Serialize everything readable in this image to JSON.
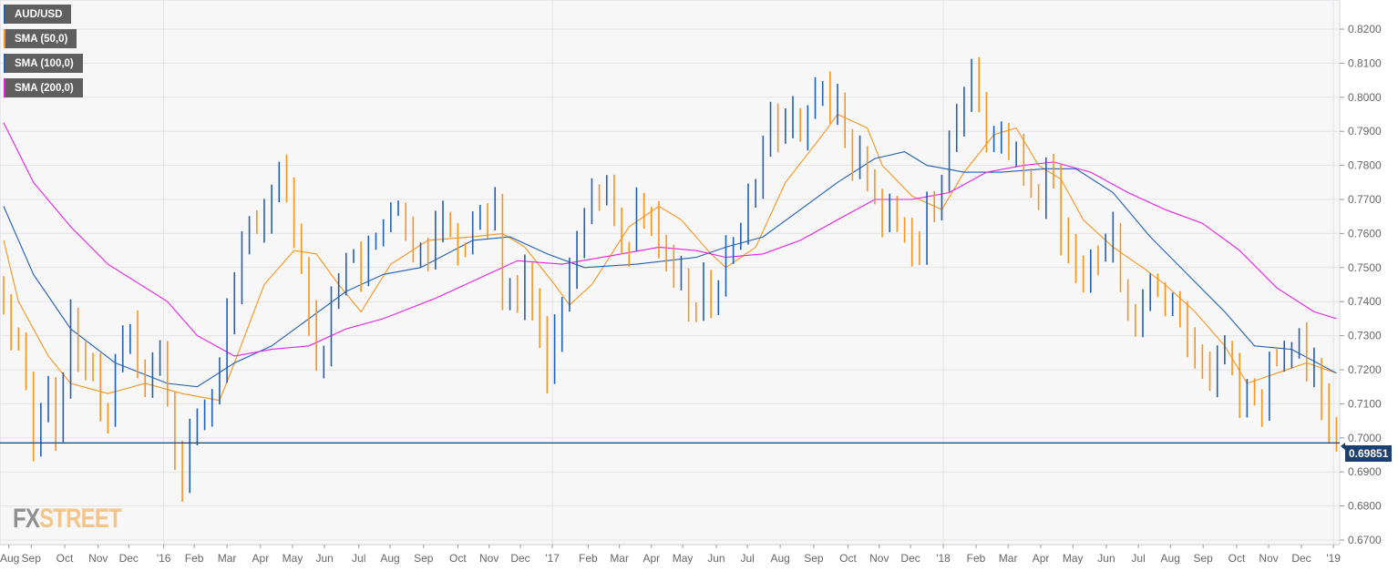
{
  "chart_data": {
    "type": "candlestick-weekly",
    "symbol": "AUD/USD",
    "ylim": [
      0.67,
      0.82
    ],
    "yticks": [
      "0.8200",
      "0.8100",
      "0.8000",
      "0.7900",
      "0.7800",
      "0.7700",
      "0.7600",
      "0.7500",
      "0.7400",
      "0.7300",
      "0.7200",
      "0.7100",
      "0.7000",
      "0.6900",
      "0.6800",
      "0.6700"
    ],
    "ytick_values": [
      0.82,
      0.81,
      0.8,
      0.79,
      0.78,
      0.77,
      0.76,
      0.75,
      0.74,
      0.73,
      0.72,
      0.71,
      0.7,
      0.69,
      0.68,
      0.67
    ],
    "weeks": 180,
    "xticks": [
      {
        "label": "Aug",
        "week": 0.7
      },
      {
        "label": "Sep",
        "week": 3.7
      },
      {
        "label": "Oct",
        "week": 8.2
      },
      {
        "label": "Nov",
        "week": 12.7
      },
      {
        "label": "Dec",
        "week": 16.8
      },
      {
        "label": "'16",
        "week": 21.5
      },
      {
        "label": "Feb",
        "week": 25.6
      },
      {
        "label": "Mar",
        "week": 30
      },
      {
        "label": "Apr",
        "week": 34.5
      },
      {
        "label": "May",
        "week": 38.8
      },
      {
        "label": "Jun",
        "week": 43.1
      },
      {
        "label": "Jul",
        "week": 47.7
      },
      {
        "label": "Aug",
        "week": 51.9
      },
      {
        "label": "Sep",
        "week": 56.4
      },
      {
        "label": "Oct",
        "week": 61
      },
      {
        "label": "Nov",
        "week": 65.2
      },
      {
        "label": "Dec",
        "week": 69.4
      },
      {
        "label": "'17",
        "week": 73.7
      },
      {
        "label": "Feb",
        "week": 78.5
      },
      {
        "label": "Mar",
        "week": 82.7
      },
      {
        "label": "Apr",
        "week": 87
      },
      {
        "label": "May",
        "week": 91.2
      },
      {
        "label": "Jun",
        "week": 95.7
      },
      {
        "label": "Jul",
        "week": 99.9
      },
      {
        "label": "Aug",
        "week": 104.3
      },
      {
        "label": "Sep",
        "week": 108.8
      },
      {
        "label": "Oct",
        "week": 113.4
      },
      {
        "label": "Nov",
        "week": 117.6
      },
      {
        "label": "Dec",
        "week": 121.8
      },
      {
        "label": "'18",
        "week": 126.2
      },
      {
        "label": "Feb",
        "week": 130.6
      },
      {
        "label": "Mar",
        "week": 134.9
      },
      {
        "label": "Apr",
        "week": 139.3
      },
      {
        "label": "May",
        "week": 143.6
      },
      {
        "label": "Jun",
        "week": 148.1
      },
      {
        "label": "Jul",
        "week": 152.4
      },
      {
        "label": "Aug",
        "week": 156.7
      },
      {
        "label": "Sep",
        "week": 161.1
      },
      {
        "label": "Oct",
        "week": 165.6
      },
      {
        "label": "Nov",
        "week": 169.9
      },
      {
        "label": "Dec",
        "week": 174.3
      },
      {
        "label": "'19",
        "week": 178.6
      }
    ],
    "year_gridlines_weeks": [
      21.5,
      73.7,
      126.2,
      178.6
    ],
    "close_keypoints": [
      [
        0,
        0.74
      ],
      [
        2,
        0.727
      ],
      [
        4,
        0.698
      ],
      [
        6,
        0.716
      ],
      [
        7,
        0.7
      ],
      [
        9,
        0.735
      ],
      [
        12,
        0.719
      ],
      [
        14,
        0.705
      ],
      [
        15,
        0.722
      ],
      [
        17,
        0.732
      ],
      [
        19,
        0.716
      ],
      [
        21,
        0.727
      ],
      [
        23,
        0.695
      ],
      [
        24,
        0.687
      ],
      [
        25,
        0.703
      ],
      [
        27,
        0.708
      ],
      [
        29,
        0.722
      ],
      [
        31,
        0.743
      ],
      [
        33,
        0.764
      ],
      [
        34,
        0.762
      ],
      [
        36,
        0.772
      ],
      [
        37,
        0.78
      ],
      [
        39,
        0.759
      ],
      [
        41,
        0.735
      ],
      [
        42,
        0.722
      ],
      [
        44,
        0.74
      ],
      [
        45,
        0.743
      ],
      [
        47,
        0.754
      ],
      [
        48,
        0.748
      ],
      [
        50,
        0.759
      ],
      [
        52,
        0.767
      ],
      [
        54,
        0.762
      ],
      [
        56,
        0.754
      ],
      [
        58,
        0.762
      ],
      [
        59,
        0.764
      ],
      [
        61,
        0.756
      ],
      [
        63,
        0.764
      ],
      [
        65,
        0.764
      ],
      [
        66,
        0.77
      ],
      [
        67,
        0.743
      ],
      [
        69,
        0.74
      ],
      [
        70,
        0.748
      ],
      [
        72,
        0.732
      ],
      [
        73,
        0.719
      ],
      [
        75,
        0.74
      ],
      [
        77,
        0.756
      ],
      [
        78,
        0.764
      ],
      [
        80,
        0.77
      ],
      [
        82,
        0.764
      ],
      [
        84,
        0.756
      ],
      [
        85,
        0.77
      ],
      [
        87,
        0.764
      ],
      [
        89,
        0.754
      ],
      [
        91,
        0.748
      ],
      [
        93,
        0.737
      ],
      [
        94,
        0.748
      ],
      [
        96,
        0.743
      ],
      [
        97,
        0.754
      ],
      [
        99,
        0.762
      ],
      [
        100,
        0.77
      ],
      [
        102,
        0.786
      ],
      [
        103,
        0.794
      ],
      [
        105,
        0.791
      ],
      [
        107,
        0.789
      ],
      [
        108,
        0.796
      ],
      [
        110,
        0.802
      ],
      [
        112,
        0.799
      ],
      [
        113,
        0.789
      ],
      [
        114,
        0.78
      ],
      [
        115,
        0.783
      ],
      [
        116,
        0.775
      ],
      [
        118,
        0.764
      ],
      [
        119,
        0.767
      ],
      [
        121,
        0.759
      ],
      [
        123,
        0.754
      ],
      [
        124,
        0.767
      ],
      [
        126,
        0.775
      ],
      [
        127,
        0.789
      ],
      [
        129,
        0.799
      ],
      [
        130,
        0.81
      ],
      [
        131,
        0.799
      ],
      [
        132,
        0.786
      ],
      [
        134,
        0.789
      ],
      [
        135,
        0.783
      ],
      [
        136,
        0.786
      ],
      [
        137,
        0.775
      ],
      [
        138,
        0.772
      ],
      [
        140,
        0.778
      ],
      [
        141,
        0.775
      ],
      [
        143,
        0.756
      ],
      [
        144,
        0.751
      ],
      [
        146,
        0.754
      ],
      [
        148,
        0.756
      ],
      [
        149,
        0.762
      ],
      [
        150,
        0.745
      ],
      [
        151,
        0.737
      ],
      [
        153,
        0.74
      ],
      [
        155,
        0.743
      ],
      [
        157,
        0.74
      ],
      [
        158,
        0.735
      ],
      [
        159,
        0.727
      ],
      [
        161,
        0.722
      ],
      [
        162,
        0.716
      ],
      [
        164,
        0.727
      ],
      [
        166,
        0.708
      ],
      [
        168,
        0.711
      ],
      [
        169,
        0.708
      ],
      [
        170,
        0.724
      ],
      [
        171,
        0.722
      ],
      [
        173,
        0.727
      ],
      [
        174,
        0.729
      ],
      [
        176,
        0.722
      ],
      [
        177,
        0.711
      ],
      [
        178,
        0.704
      ],
      [
        179,
        0.69851
      ]
    ],
    "series": [
      {
        "name": "SMA (50,0)",
        "color": "#f7941d",
        "points": [
          [
            0,
            0.758
          ],
          [
            2,
            0.74
          ],
          [
            6,
            0.724
          ],
          [
            9,
            0.716
          ],
          [
            14,
            0.713
          ],
          [
            19,
            0.716
          ],
          [
            24,
            0.713
          ],
          [
            29,
            0.711
          ],
          [
            31,
            0.722
          ],
          [
            35,
            0.745
          ],
          [
            39,
            0.755
          ],
          [
            42,
            0.754
          ],
          [
            45,
            0.745
          ],
          [
            48,
            0.737
          ],
          [
            52,
            0.751
          ],
          [
            57,
            0.758
          ],
          [
            63,
            0.759
          ],
          [
            67,
            0.76
          ],
          [
            70,
            0.756
          ],
          [
            74,
            0.745
          ],
          [
            76,
            0.739
          ],
          [
            79,
            0.745
          ],
          [
            84,
            0.762
          ],
          [
            88,
            0.768
          ],
          [
            91,
            0.764
          ],
          [
            95,
            0.754
          ],
          [
            97,
            0.75
          ],
          [
            101,
            0.756
          ],
          [
            105,
            0.775
          ],
          [
            110,
            0.789
          ],
          [
            112,
            0.795
          ],
          [
            116,
            0.791
          ],
          [
            118,
            0.78
          ],
          [
            122,
            0.771
          ],
          [
            126,
            0.767
          ],
          [
            129,
            0.778
          ],
          [
            133,
            0.789
          ],
          [
            136,
            0.791
          ],
          [
            139,
            0.78
          ],
          [
            142,
            0.776
          ],
          [
            145,
            0.764
          ],
          [
            149,
            0.756
          ],
          [
            153,
            0.75
          ],
          [
            156,
            0.745
          ],
          [
            160,
            0.737
          ],
          [
            164,
            0.727
          ],
          [
            167,
            0.716
          ],
          [
            171,
            0.719
          ],
          [
            175,
            0.722
          ],
          [
            179,
            0.719
          ]
        ]
      },
      {
        "name": "SMA (100,0)",
        "color": "#1f5fb5",
        "points": [
          [
            0,
            0.768
          ],
          [
            4,
            0.748
          ],
          [
            9,
            0.732
          ],
          [
            15,
            0.722
          ],
          [
            22,
            0.716
          ],
          [
            26,
            0.715
          ],
          [
            31,
            0.722
          ],
          [
            36,
            0.727
          ],
          [
            41,
            0.735
          ],
          [
            46,
            0.743
          ],
          [
            51,
            0.748
          ],
          [
            56,
            0.75
          ],
          [
            63,
            0.758
          ],
          [
            68,
            0.759
          ],
          [
            73,
            0.754
          ],
          [
            78,
            0.75
          ],
          [
            85,
            0.751
          ],
          [
            93,
            0.753
          ],
          [
            97,
            0.756
          ],
          [
            102,
            0.759
          ],
          [
            107,
            0.767
          ],
          [
            112,
            0.775
          ],
          [
            117,
            0.782
          ],
          [
            121,
            0.784
          ],
          [
            124,
            0.78
          ],
          [
            129,
            0.778
          ],
          [
            134,
            0.778
          ],
          [
            140,
            0.779
          ],
          [
            144,
            0.779
          ],
          [
            149,
            0.772
          ],
          [
            154,
            0.759
          ],
          [
            159,
            0.748
          ],
          [
            164,
            0.737
          ],
          [
            168,
            0.727
          ],
          [
            173,
            0.726
          ],
          [
            179,
            0.719
          ]
        ]
      },
      {
        "name": "SMA (200,0)",
        "color": "#e81ee8",
        "points": [
          [
            0,
            0.7925
          ],
          [
            4,
            0.775
          ],
          [
            9,
            0.762
          ],
          [
            14,
            0.751
          ],
          [
            22,
            0.74
          ],
          [
            26,
            0.73
          ],
          [
            31,
            0.724
          ],
          [
            36,
            0.726
          ],
          [
            41,
            0.727
          ],
          [
            46,
            0.732
          ],
          [
            51,
            0.735
          ],
          [
            58,
            0.741
          ],
          [
            64,
            0.747
          ],
          [
            69,
            0.752
          ],
          [
            75,
            0.751
          ],
          [
            83,
            0.754
          ],
          [
            88,
            0.756
          ],
          [
            93,
            0.755
          ],
          [
            97,
            0.753
          ],
          [
            102,
            0.754
          ],
          [
            107,
            0.758
          ],
          [
            112,
            0.764
          ],
          [
            117,
            0.77
          ],
          [
            122,
            0.77
          ],
          [
            127,
            0.772
          ],
          [
            132,
            0.778
          ],
          [
            137,
            0.78
          ],
          [
            141,
            0.781
          ],
          [
            146,
            0.778
          ],
          [
            151,
            0.772
          ],
          [
            156,
            0.767
          ],
          [
            161,
            0.763
          ],
          [
            166,
            0.755
          ],
          [
            171,
            0.744
          ],
          [
            176,
            0.737
          ],
          [
            179,
            0.735
          ]
        ]
      }
    ],
    "last_price": "0.69851",
    "legend": [
      "AUD/USD",
      "SMA (50,0)",
      "SMA (100,0)",
      "SMA (200,0)"
    ],
    "legend_colors": [
      "#1f5fb5",
      "#f7941d",
      "#1f5fb5",
      "#e81ee8"
    ],
    "up_color": "#1f5fb5",
    "down_color": "#f7941d",
    "legend_placement": "top-left"
  },
  "branding": {
    "logo_fx": "FX",
    "logo_street": "STREET"
  }
}
